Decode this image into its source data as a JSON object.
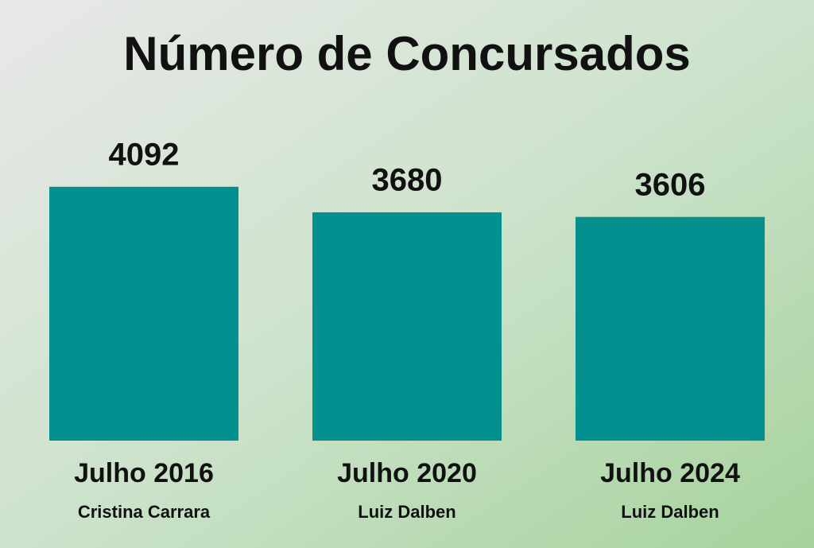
{
  "chart_data": {
    "type": "bar",
    "title": "Número de Concursados",
    "categories": [
      "Julho 2016",
      "Julho 2020",
      "Julho 2024"
    ],
    "sublabels": [
      "Cristina Carrara",
      "Luiz Dalben",
      "Luiz Dalben"
    ],
    "values": [
      4092,
      3680,
      3606
    ],
    "color": "#03908f"
  }
}
